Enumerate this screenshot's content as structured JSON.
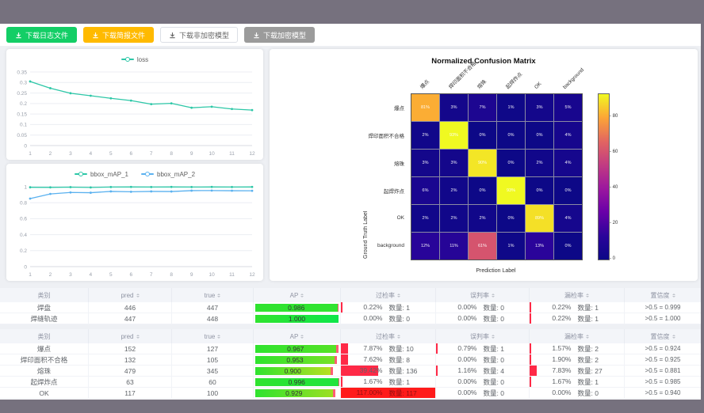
{
  "toolbar": {
    "buttons": [
      {
        "label": "下载日志文件",
        "variant": "success"
      },
      {
        "label": "下载简报文件",
        "variant": "warning"
      },
      {
        "label": "下载非加密模型",
        "variant": "plain"
      },
      {
        "label": "下载加密模型",
        "variant": "disabled"
      }
    ]
  },
  "chart_data": [
    {
      "id": "loss",
      "type": "line",
      "x": [
        1,
        2,
        3,
        4,
        5,
        6,
        7,
        8,
        9,
        10,
        11,
        12
      ],
      "series": [
        {
          "name": "loss",
          "color": "#2dc7a7",
          "values": [
            0.305,
            0.273,
            0.249,
            0.237,
            0.225,
            0.214,
            0.197,
            0.201,
            0.18,
            0.185,
            0.174,
            0.169
          ]
        }
      ],
      "ylim": [
        0,
        0.35
      ],
      "ytick_step": 0.05,
      "legend_position": "top",
      "grid": true
    },
    {
      "id": "map",
      "type": "line",
      "x": [
        1,
        2,
        3,
        4,
        5,
        6,
        7,
        8,
        9,
        10,
        11,
        12
      ],
      "series": [
        {
          "name": "bbox_mAP_1",
          "color": "#2dc7a7",
          "values": [
            0.993,
            0.992,
            0.995,
            0.991,
            0.996,
            0.997,
            0.996,
            0.997,
            0.996,
            0.997,
            0.996,
            0.997
          ]
        },
        {
          "name": "bbox_mAP_2",
          "color": "#5ab1ef",
          "values": [
            0.851,
            0.91,
            0.928,
            0.925,
            0.941,
            0.937,
            0.941,
            0.94,
            0.951,
            0.952,
            0.95,
            0.949
          ]
        }
      ],
      "ylim": [
        0,
        1
      ],
      "ytick_step": 0.2,
      "legend_position": "top",
      "grid": true
    },
    {
      "id": "confusion",
      "type": "heatmap",
      "title": "Normalized Confusion Matrix",
      "xlabel": "Prediction Label",
      "ylabel": "Ground Truth Label",
      "categories": [
        "爆点",
        "焊印面积不合格",
        "熔珠",
        "起焊炸点",
        "OK",
        "background"
      ],
      "matrix": [
        [
          81,
          3,
          7,
          1,
          3,
          5
        ],
        [
          2,
          93,
          0,
          0,
          0,
          4
        ],
        [
          3,
          3,
          90,
          0,
          2,
          4
        ],
        [
          6,
          2,
          0,
          93,
          0,
          0
        ],
        [
          2,
          2,
          2,
          0,
          89,
          4
        ],
        [
          12,
          11,
          61,
          1,
          13,
          0
        ]
      ],
      "unit": "%",
      "vmax": 93,
      "colorbar_ticks": [
        0,
        20,
        40,
        60,
        80
      ],
      "colormap": "plasma"
    }
  ],
  "tables": {
    "headers": [
      "类别",
      "pred",
      "true",
      "AP",
      "过检率",
      "误判率",
      "漏检率",
      "置信度"
    ],
    "count_label": "数量",
    "table1": {
      "rows": [
        {
          "name": "焊盘",
          "pred": "446",
          "true": "447",
          "ap": "0.986",
          "ap_value": 0.986,
          "ap_color": "#30e430",
          "over": {
            "rate": "0.22%",
            "pct": 0.22,
            "count": "1"
          },
          "mis": {
            "rate": "0.00%",
            "pct": 0,
            "count": "0"
          },
          "miss": {
            "rate": "0.22%",
            "pct": 0.22,
            "count": "1"
          },
          "conf": ">0.5 = 0.999"
        },
        {
          "name": "焊缝轨迹",
          "pred": "447",
          "true": "448",
          "ap": "1.000",
          "ap_value": 1.0,
          "ap_color": "#0ee64a",
          "over": {
            "rate": "0.00%",
            "pct": 0,
            "count": "0"
          },
          "mis": {
            "rate": "0.00%",
            "pct": 0,
            "count": "0"
          },
          "miss": {
            "rate": "0.22%",
            "pct": 0.22,
            "count": "1"
          },
          "conf": ">0.5 = 1.000"
        }
      ]
    },
    "table2": {
      "rows": [
        {
          "name": "爆点",
          "pred": "152",
          "true": "127",
          "ap": "0.967",
          "ap_value": 0.967,
          "ap_color": "#55e226",
          "over": {
            "rate": "7.87%",
            "pct": 7.87,
            "count": "10"
          },
          "mis": {
            "rate": "0.79%",
            "pct": 0.79,
            "count": "1"
          },
          "miss": {
            "rate": "1.57%",
            "pct": 1.57,
            "count": "2"
          },
          "conf": ">0.5 = 0.924"
        },
        {
          "name": "焊印面积不合格",
          "pred": "132",
          "true": "105",
          "ap": "0.953",
          "ap_value": 0.953,
          "ap_color": "#76e126",
          "over": {
            "rate": "7.62%",
            "pct": 7.62,
            "count": "8"
          },
          "mis": {
            "rate": "0.00%",
            "pct": 0,
            "count": "0"
          },
          "miss": {
            "rate": "1.90%",
            "pct": 1.9,
            "count": "2"
          },
          "conf": ">0.5 = 0.925"
        },
        {
          "name": "熔珠",
          "pred": "479",
          "true": "345",
          "ap": "0.900",
          "ap_value": 0.9,
          "ap_color": "#b8df21",
          "over": {
            "rate": "39.42%",
            "pct": 39.42,
            "count": "136"
          },
          "mis": {
            "rate": "1.16%",
            "pct": 1.16,
            "count": "4"
          },
          "miss": {
            "rate": "7.83%",
            "pct": 7.83,
            "count": "27"
          },
          "conf": ">0.5 = 0.881"
        },
        {
          "name": "起焊炸点",
          "pred": "63",
          "true": "60",
          "ap": "0.996",
          "ap_value": 0.996,
          "ap_color": "#1fe43d",
          "over": {
            "rate": "1.67%",
            "pct": 1.67,
            "count": "1"
          },
          "mis": {
            "rate": "0.00%",
            "pct": 0,
            "count": "0"
          },
          "miss": {
            "rate": "1.67%",
            "pct": 1.67,
            "count": "1"
          },
          "conf": ">0.5 = 0.985"
        },
        {
          "name": "OK",
          "pred": "117",
          "true": "100",
          "ap": "0.929",
          "ap_value": 0.929,
          "ap_color": "#9cdf23",
          "over": {
            "rate": "117.00%",
            "pct": 117,
            "count": "117"
          },
          "mis": {
            "rate": "0.00%",
            "pct": 0,
            "count": "0"
          },
          "miss": {
            "rate": "0.00%",
            "pct": 0,
            "count": "0"
          },
          "conf": ">0.5 = 0.940"
        }
      ]
    }
  }
}
